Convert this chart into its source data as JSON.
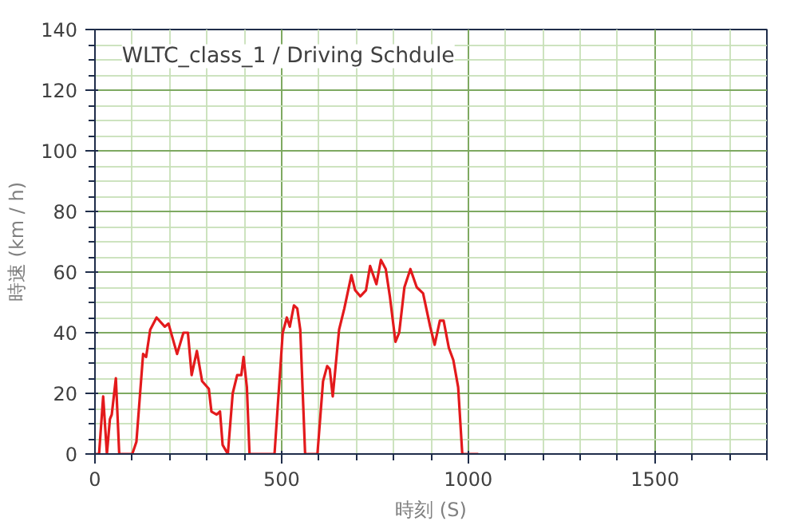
{
  "chart_data": {
    "type": "line",
    "title": "WLTC_class_1 / Driving Schdule",
    "xlabel": "時刻 (S)",
    "ylabel": "時速 (km / h)",
    "xlim": [
      0,
      1800
    ],
    "ylim": [
      0,
      140
    ],
    "xticks": [
      0,
      500,
      1000,
      1500
    ],
    "yticks": [
      0,
      20,
      40,
      60,
      80,
      100,
      120,
      140
    ],
    "grid": true,
    "marker": "none",
    "line_style": "solid",
    "series": [
      {
        "color": "#e31a1c",
        "x": [
          0,
          11,
          22,
          32,
          40,
          45,
          56,
          65,
          100,
          111,
          129,
          137,
          148,
          165,
          187,
          197,
          220,
          237,
          249,
          259,
          273,
          287,
          305,
          312,
          326,
          335,
          342,
          356,
          369,
          381,
          392,
          398,
          407,
          414,
          481,
          503,
          514,
          522,
          533,
          542,
          550,
          563,
          596,
          611,
          622,
          629,
          637,
          654,
          668,
          687,
          697,
          711,
          726,
          737,
          754,
          766,
          779,
          790,
          805,
          815,
          829,
          845,
          862,
          879,
          898,
          910,
          924,
          934,
          948,
          960,
          973,
          984,
          1027
        ],
        "values": [
          0,
          0,
          19,
          0,
          11.5,
          13,
          25,
          0,
          0,
          4,
          33,
          32,
          41,
          45,
          42,
          43,
          33,
          40,
          40,
          26,
          34,
          24,
          21.5,
          14,
          13,
          14,
          3,
          0,
          20,
          26,
          26,
          32,
          22,
          0,
          0,
          40,
          45,
          42,
          49,
          48,
          41,
          0,
          0,
          24,
          29,
          28,
          19,
          41,
          48,
          59,
          54,
          52,
          54,
          62,
          56,
          64,
          61,
          52,
          37,
          40,
          55,
          61,
          55,
          53,
          42,
          36,
          44,
          44,
          35,
          31,
          22,
          0,
          0
        ]
      }
    ]
  }
}
